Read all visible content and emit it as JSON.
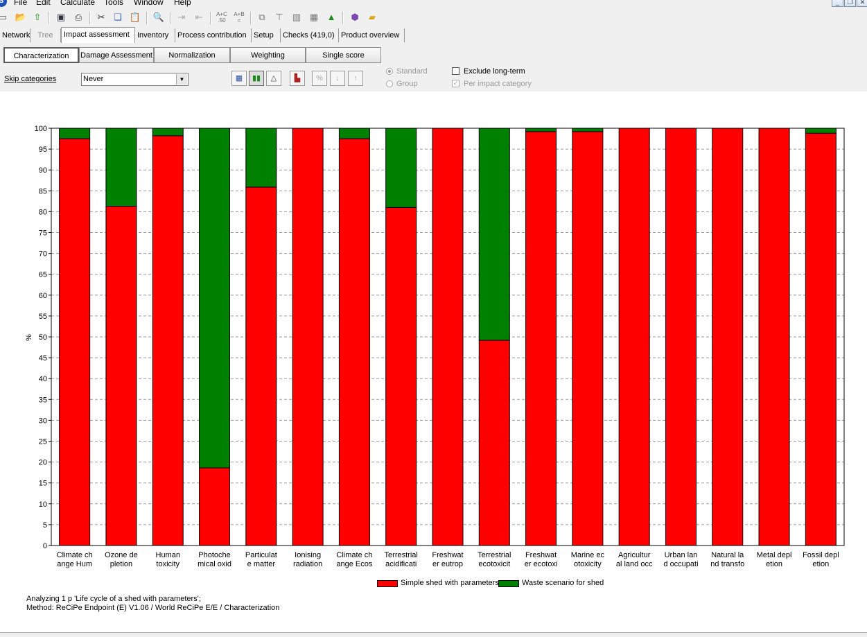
{
  "menu": [
    "File",
    "Edit",
    "Calculate",
    "Tools",
    "Window",
    "Help"
  ],
  "toolbar_icons": [
    "new-icon",
    "open-icon",
    "upload-icon",
    "save-icon",
    "print-icon",
    "cut-icon",
    "copy-icon",
    "paste-icon",
    "search-icon",
    "indent-icon",
    "outdent-icon",
    "a-plus-c-icon",
    "a-plus-b-icon",
    "network-icon",
    "tree-icon",
    "bar-chart-icon",
    "histogram-icon",
    "distribution-icon",
    "package-icon",
    "folder-icon"
  ],
  "toolbar_text": {
    "apc_top": "A+C",
    "apc_bottom": ".50",
    "apb_top": "A+B",
    "apb_bottom": "="
  },
  "tabs": [
    {
      "label": "Network",
      "state": "normal"
    },
    {
      "label": "Tree",
      "state": "disabled"
    },
    {
      "label": "Impact assessment",
      "state": "active"
    },
    {
      "label": "Inventory",
      "state": "normal"
    },
    {
      "label": "Process contribution",
      "state": "normal"
    },
    {
      "label": "Setup",
      "state": "normal"
    },
    {
      "label": "Checks (419,0)",
      "state": "normal"
    },
    {
      "label": "Product overview",
      "state": "normal"
    }
  ],
  "subtabs": [
    {
      "label": "Characterization",
      "active": true
    },
    {
      "label": "Damage Assessment",
      "active": false
    },
    {
      "label": "Normalization",
      "active": false
    },
    {
      "label": "Weighting",
      "active": false
    },
    {
      "label": "Single score",
      "active": false
    }
  ],
  "options": {
    "skip_label": "Skip categories",
    "skip_value": "Never",
    "radio_standard": "Standard",
    "radio_group": "Group",
    "exclude_longterm": "Exclude long-term",
    "per_impact": "Per impact category"
  },
  "colors": {
    "series1": "#ff0000",
    "series2": "#008000"
  },
  "chart_data": {
    "type": "bar",
    "stacked": true,
    "ylabel": "%",
    "ylim": [
      0,
      100
    ],
    "yticks": [
      0,
      5,
      10,
      15,
      20,
      25,
      30,
      35,
      40,
      45,
      50,
      55,
      60,
      65,
      70,
      75,
      80,
      85,
      90,
      95,
      100
    ],
    "grid": true,
    "legend_position": "bottom",
    "categories": [
      [
        "Climate ch",
        "ange Hum"
      ],
      [
        "Ozone de",
        "pletion"
      ],
      [
        "Human",
        "toxicity"
      ],
      [
        "Photoche",
        "mical oxid"
      ],
      [
        "Particulat",
        "e matter"
      ],
      [
        "Ionising",
        "radiation"
      ],
      [
        "Climate ch",
        "ange Ecos"
      ],
      [
        "Terrestrial",
        "acidificati"
      ],
      [
        "Freshwat",
        "er eutrop"
      ],
      [
        "Terrestrial",
        "ecotoxicit"
      ],
      [
        "Freshwat",
        "er ecotoxi"
      ],
      [
        "Marine ec",
        "otoxicity"
      ],
      [
        "Agricultur",
        "al land occ"
      ],
      [
        "Urban lan",
        "d occupati"
      ],
      [
        "Natural la",
        "nd transfo"
      ],
      [
        "Metal depl",
        "etion"
      ],
      [
        "Fossil depl",
        "etion"
      ]
    ],
    "series": [
      {
        "name": "Simple shed with parameters",
        "values": [
          97.5,
          81.3,
          98.2,
          18.6,
          85.9,
          100,
          97.5,
          81.0,
          100,
          49.2,
          99.2,
          99.2,
          100,
          100,
          100,
          100,
          98.8
        ]
      },
      {
        "name": "Waste scenario for shed",
        "values": [
          2.5,
          18.7,
          1.8,
          81.4,
          14.1,
          0,
          2.5,
          19.0,
          0,
          50.8,
          0.8,
          0.8,
          0,
          0,
          0,
          0,
          1.2
        ]
      }
    ]
  },
  "footer": {
    "line1": "Analyzing 1 p 'Life cycle of a shed with parameters';",
    "line2": "Method: ReCiPe Endpoint (E) V1.06 / World ReCiPe E/E / Characterization"
  }
}
